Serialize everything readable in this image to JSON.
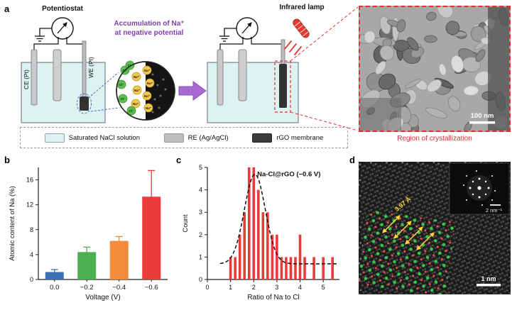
{
  "figure": {
    "panel_a": {
      "label": "a",
      "potentiostat_label": "Potentiostat",
      "ce_label": "CE (Pt)",
      "we_label": "WE (Pt)",
      "accumulation_line1": "Accumulation of Na⁺",
      "accumulation_line2": "at negative potential",
      "infrared_lamp_label": "Infrared lamp",
      "na_ion_label": "Na⁺",
      "cl_ion_label": "Cl⁻",
      "tem_scale_bar": "100 nm",
      "region_caption": "Region of crystallization",
      "accent_purple": "#8040b0",
      "accent_red": "#e03030",
      "legend": [
        {
          "label": "Saturated NaCl solution",
          "color": "#ddf3f1"
        },
        {
          "label": "RE (Ag/AgCl)",
          "color": "#bdbdbd"
        },
        {
          "label": "rGO membrane",
          "color": "#3c3c3c"
        }
      ]
    },
    "panel_b": {
      "label": "b"
    },
    "panel_c": {
      "label": "c"
    },
    "panel_d": {
      "label": "d",
      "spacing_annotation": "3.97 Å",
      "fft_scale_bar": "2 nm⁻¹",
      "scale_bar": "1 nm"
    }
  },
  "chart_data": [
    {
      "type": "bar",
      "panel": "b",
      "title": "",
      "categories": [
        "0.0",
        "−0.2",
        "−0.4",
        "−0.6"
      ],
      "values": [
        1.2,
        4.4,
        6.2,
        13.3
      ],
      "errors": [
        0.4,
        0.8,
        0.7,
        4.2
      ],
      "bar_colors": [
        "#3f6fb4",
        "#4caf50",
        "#f28c3b",
        "#ea3b3b"
      ],
      "xlabel": "Voltage (V)",
      "ylabel": "Atomic content of Na (%)",
      "ylim": [
        0,
        18
      ],
      "yticks": [
        0,
        4,
        8,
        12,
        16
      ],
      "grid": false,
      "legend_position": "none"
    },
    {
      "type": "bar",
      "panel": "c",
      "annotation": "Na-Cl@rGO (−0.6 V)",
      "x": [
        1.0,
        1.2,
        1.4,
        1.6,
        1.8,
        2.0,
        2.2,
        2.4,
        2.6,
        2.8,
        3.0,
        3.2,
        3.4,
        3.6,
        3.8,
        4.0,
        4.2,
        4.6,
        5.0,
        5.4
      ],
      "counts": [
        1,
        1,
        2,
        3,
        5,
        5,
        4,
        3,
        3,
        2,
        2,
        1,
        1,
        1,
        1,
        2,
        1,
        1,
        1,
        1
      ],
      "bar_color": "#ea3b3b",
      "fit_curve": {
        "type": "gaussian-dashed",
        "baseline": 0.7,
        "amplitude": 4.0,
        "mean": 2.05,
        "sigma": 0.45
      },
      "xlabel": "Ratio of Na to Cl",
      "ylabel": "Count",
      "xlim": [
        0,
        5.7
      ],
      "ylim": [
        0,
        5
      ],
      "xticks": [
        0,
        1,
        2,
        3,
        4,
        5
      ],
      "yticks": [
        0,
        1,
        2,
        3,
        4,
        5
      ],
      "grid": false,
      "legend_position": "none"
    }
  ]
}
